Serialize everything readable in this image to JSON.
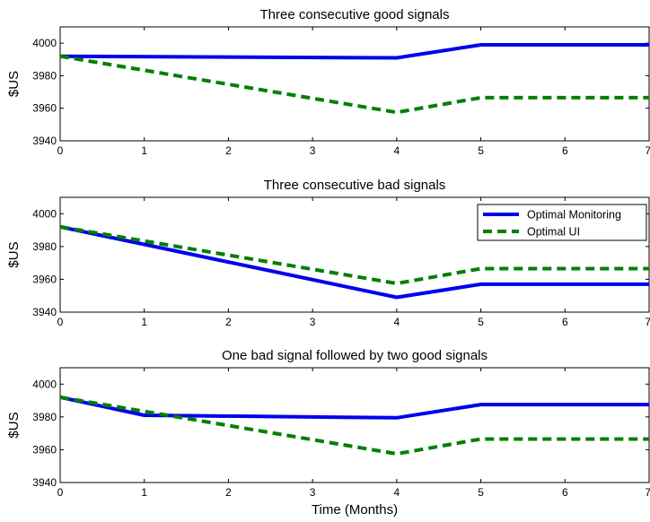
{
  "chart_data": [
    {
      "type": "line",
      "title": "Three consecutive good signals",
      "xlabel": "",
      "ylabel": "$US",
      "xlim": [
        0,
        7
      ],
      "ylim": [
        3940,
        4010
      ],
      "xticks": [
        "0",
        "1",
        "2",
        "3",
        "4",
        "5",
        "6",
        "7"
      ],
      "yticks": [
        "3940",
        "3960",
        "3980",
        "4000"
      ],
      "grid": false,
      "series": [
        {
          "key": "monitoring",
          "color": "#0000ee",
          "dash": "solid",
          "x": [
            0,
            4,
            5,
            7
          ],
          "y": [
            3992,
            3991,
            3999,
            3999
          ]
        },
        {
          "key": "ui",
          "color": "#008000",
          "dash": "dashed",
          "x": [
            0,
            4,
            5,
            7
          ],
          "y": [
            3992,
            3957.5,
            3966.5,
            3966.5
          ]
        }
      ]
    },
    {
      "type": "line",
      "title": "Three consecutive bad signals",
      "xlabel": "",
      "ylabel": "$US",
      "xlim": [
        0,
        7
      ],
      "ylim": [
        3940,
        4010
      ],
      "xticks": [
        "0",
        "1",
        "2",
        "3",
        "4",
        "5",
        "6",
        "7"
      ],
      "yticks": [
        "3940",
        "3960",
        "3980",
        "4000"
      ],
      "grid": false,
      "legend": {
        "placement": "top-right",
        "entries": [
          {
            "label": "Optimal Monitoring",
            "color": "#0000ee",
            "dash": "solid"
          },
          {
            "label": "Optimal UI",
            "color": "#008000",
            "dash": "dashed"
          }
        ]
      },
      "series": [
        {
          "key": "monitoring",
          "color": "#0000ee",
          "dash": "solid",
          "x": [
            0,
            4,
            5,
            7
          ],
          "y": [
            3992,
            3949,
            3957,
            3957
          ]
        },
        {
          "key": "ui",
          "color": "#008000",
          "dash": "dashed",
          "x": [
            0,
            4,
            5,
            7
          ],
          "y": [
            3992,
            3957.5,
            3966.5,
            3966.5
          ]
        }
      ]
    },
    {
      "type": "line",
      "title": "One bad signal followed by two good signals",
      "xlabel": "Time (Months)",
      "ylabel": "$US",
      "xlim": [
        0,
        7
      ],
      "ylim": [
        3940,
        4010
      ],
      "xticks": [
        "0",
        "1",
        "2",
        "3",
        "4",
        "5",
        "6",
        "7"
      ],
      "yticks": [
        "3940",
        "3960",
        "3980",
        "4000"
      ],
      "grid": false,
      "series": [
        {
          "key": "monitoring",
          "color": "#0000ee",
          "dash": "solid",
          "x": [
            0,
            1,
            4,
            5,
            7
          ],
          "y": [
            3992,
            3981,
            3979.5,
            3987.5,
            3987.5
          ]
        },
        {
          "key": "ui",
          "color": "#008000",
          "dash": "dashed",
          "x": [
            0,
            4,
            5,
            7
          ],
          "y": [
            3992,
            3957.5,
            3966.5,
            3966.5
          ]
        }
      ]
    }
  ]
}
